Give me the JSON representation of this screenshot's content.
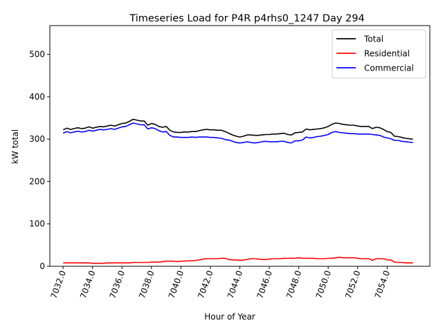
{
  "chart_data": {
    "type": "line",
    "title": "Timeseries Load for P4R p4rhs0_1247  Day 294",
    "xlabel": "Hour of Year",
    "ylabel": "kW total",
    "xlim": [
      7031.1,
      7056.9
    ],
    "ylim": [
      0,
      568
    ],
    "x_ticks": [
      7032,
      7034,
      7036,
      7038,
      7040,
      7042,
      7044,
      7046,
      7048,
      7050,
      7052,
      7054
    ],
    "x_tick_labels": [
      "7032.0",
      "7034.0",
      "7036.0",
      "7038.0",
      "7040.0",
      "7042.0",
      "7044.0",
      "7046.0",
      "7048.0",
      "7050.0",
      "7052.0",
      "7054.0"
    ],
    "y_ticks": [
      0,
      100,
      200,
      300,
      400,
      500
    ],
    "y_tick_labels": [
      "0",
      "100",
      "200",
      "300",
      "400",
      "500"
    ],
    "legend_position": "top-right",
    "x": [
      7032.0,
      7032.25,
      7032.5,
      7032.75,
      7033.0,
      7033.25,
      7033.5,
      7033.75,
      7034.0,
      7034.25,
      7034.5,
      7034.75,
      7035.0,
      7035.25,
      7035.5,
      7035.75,
      7036.0,
      7036.25,
      7036.5,
      7036.75,
      7037.0,
      7037.25,
      7037.5,
      7037.75,
      7038.0,
      7038.25,
      7038.5,
      7038.75,
      7039.0,
      7039.25,
      7039.5,
      7039.75,
      7040.0,
      7040.25,
      7040.5,
      7040.75,
      7041.0,
      7041.25,
      7041.5,
      7041.75,
      7042.0,
      7042.25,
      7042.5,
      7042.75,
      7043.0,
      7043.25,
      7043.5,
      7043.75,
      7044.0,
      7044.25,
      7044.5,
      7044.75,
      7045.0,
      7045.25,
      7045.5,
      7045.75,
      7046.0,
      7046.25,
      7046.5,
      7046.75,
      7047.0,
      7047.25,
      7047.5,
      7047.75,
      7048.0,
      7048.25,
      7048.5,
      7048.75,
      7049.0,
      7049.25,
      7049.5,
      7049.75,
      7050.0,
      7050.25,
      7050.5,
      7050.75,
      7051.0,
      7051.25,
      7051.5,
      7051.75,
      7052.0,
      7052.25,
      7052.5,
      7052.75,
      7053.0,
      7053.25,
      7053.5,
      7053.75,
      7054.0,
      7054.25,
      7054.5,
      7054.75,
      7055.0,
      7055.25,
      7055.5,
      7055.75
    ],
    "series": [
      {
        "name": "Total",
        "color": "#000000",
        "values": [
          322,
          326,
          323,
          325,
          327,
          325,
          326,
          329,
          326,
          328,
          330,
          329,
          331,
          333,
          331,
          334,
          337,
          338,
          342,
          347,
          345,
          343,
          343,
          333,
          337,
          335,
          330,
          328,
          330,
          321,
          317,
          316,
          316,
          317,
          317,
          318,
          318,
          320,
          322,
          323,
          322,
          322,
          321,
          321,
          318,
          314,
          310,
          307,
          305,
          307,
          310,
          310,
          309,
          309,
          310,
          311,
          311,
          312,
          312,
          313,
          314,
          311,
          310,
          315,
          316,
          317,
          324,
          322,
          323,
          324,
          325,
          327,
          330,
          335,
          338,
          337,
          335,
          334,
          333,
          333,
          331,
          330,
          330,
          330,
          325,
          328,
          327,
          323,
          318,
          316,
          307,
          306,
          304,
          302,
          301,
          300
        ]
      },
      {
        "name": "Residential",
        "color": "#ff0000",
        "values": [
          8,
          8,
          8,
          8,
          8,
          8,
          8,
          8,
          7,
          7,
          7,
          7,
          8,
          8,
          8,
          8,
          8,
          8,
          8,
          9,
          9,
          9,
          9,
          9,
          10,
          10,
          10,
          11,
          12,
          12,
          12,
          11,
          12,
          12,
          13,
          13,
          14,
          15,
          17,
          18,
          18,
          18,
          18,
          19,
          19,
          16,
          15,
          15,
          14,
          15,
          16,
          18,
          18,
          17,
          16,
          16,
          17,
          18,
          18,
          18,
          19,
          19,
          19,
          19,
          20,
          19,
          19,
          19,
          19,
          18,
          18,
          18,
          19,
          19,
          20,
          21,
          20,
          20,
          20,
          20,
          19,
          18,
          18,
          18,
          14,
          18,
          18,
          18,
          15,
          15,
          10,
          9,
          9,
          8,
          8,
          8
        ]
      },
      {
        "name": "Commercial",
        "color": "#0000ff",
        "values": [
          314,
          318,
          315,
          317,
          319,
          317,
          318,
          321,
          319,
          321,
          323,
          322,
          323,
          325,
          323,
          326,
          329,
          330,
          334,
          338,
          336,
          334,
          334,
          324,
          327,
          325,
          320,
          317,
          318,
          309,
          305,
          305,
          304,
          304,
          304,
          305,
          304,
          305,
          305,
          305,
          304,
          304,
          303,
          302,
          299,
          298,
          295,
          292,
          291,
          292,
          294,
          292,
          291,
          292,
          294,
          295,
          294,
          294,
          294,
          295,
          295,
          292,
          291,
          296,
          296,
          298,
          305,
          303,
          304,
          306,
          307,
          309,
          311,
          316,
          318,
          316,
          315,
          314,
          313,
          313,
          312,
          312,
          312,
          312,
          311,
          310,
          309,
          305,
          303,
          301,
          297,
          297,
          295,
          294,
          293,
          292
        ]
      }
    ]
  }
}
